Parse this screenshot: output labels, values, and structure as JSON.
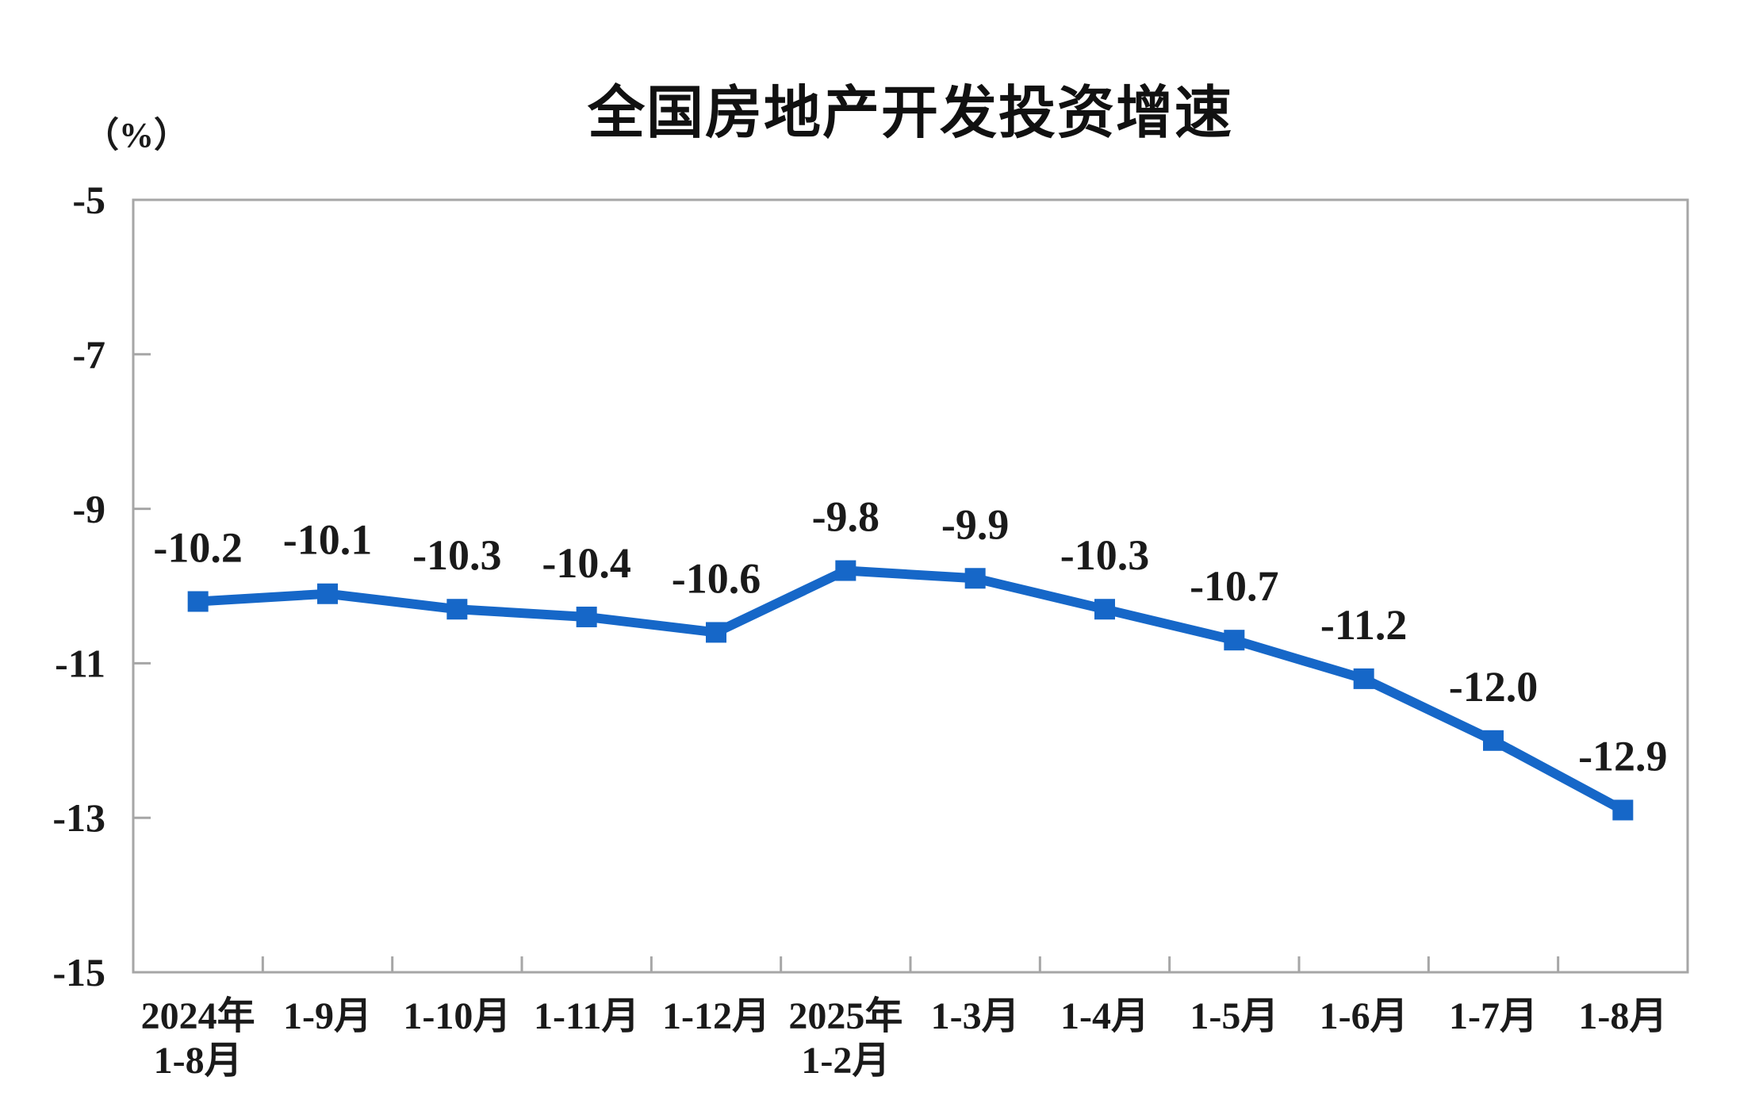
{
  "page": {
    "background": "#FFFFFF"
  },
  "chart_data": {
    "type": "line",
    "title": "全国房地产开发投资增速",
    "unit_label": "（%）",
    "categories": [
      "2024年\n1-8月",
      "1-9月",
      "1-10月",
      "1-11月",
      "1-12月",
      "2025年\n1-2月",
      "1-3月",
      "1-4月",
      "1-5月",
      "1-6月",
      "1-7月",
      "1-8月"
    ],
    "series": [
      {
        "values": [
          -10.2,
          -10.1,
          -10.3,
          -10.4,
          -10.6,
          -9.8,
          -9.9,
          -10.3,
          -10.7,
          -11.2,
          -12.0,
          -12.9
        ],
        "labels": [
          "-10.2",
          "-10.1",
          "-10.3",
          "-10.4",
          "-10.6",
          "-9.8",
          "-9.9",
          "-10.3",
          "-10.7",
          "-11.2",
          "-12.0",
          "-12.9"
        ]
      }
    ],
    "ylim": [
      -15,
      -5
    ],
    "yticks": [
      "-5",
      "-7",
      "-9",
      "-11",
      "-13",
      "-15"
    ],
    "grid": false,
    "legend": "none",
    "marker": "square",
    "colors": {
      "line": "#1667C8",
      "axis": "#A6A6A6",
      "text": "#1A1A1A",
      "title": "#111111",
      "background": "#FFFFFF"
    }
  }
}
